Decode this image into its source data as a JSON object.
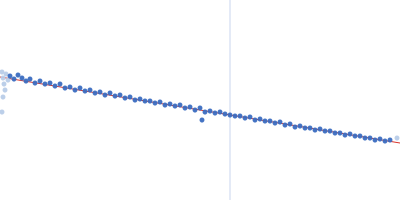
{
  "chart_data": {
    "type": "scatter",
    "xlim": [
      0,
      400
    ],
    "ylim": [
      0,
      200
    ],
    "tick_labels": false,
    "grid": false,
    "series": [
      {
        "type": "line",
        "color": "#c9d5ee",
        "line_style": "solid",
        "values": [
          [
            230,
            0
          ],
          [
            230,
            200
          ]
        ]
      },
      {
        "type": "scatter",
        "color": "#b8cce8",
        "marker": "circle",
        "values": [
          [
            2,
            128
          ],
          [
            3,
            122
          ],
          [
            4,
            116
          ],
          [
            5,
            110
          ],
          [
            3,
            103
          ],
          [
            2,
            88
          ],
          [
            6,
            126
          ],
          [
            8,
            120
          ],
          [
            397,
            62
          ]
        ]
      },
      {
        "type": "scatter",
        "color": "#3a6bc0",
        "marker": "circle",
        "values": [
          [
            10,
            124
          ],
          [
            14,
            121
          ],
          [
            18,
            125
          ],
          [
            22,
            122
          ],
          [
            26,
            119
          ],
          [
            30,
            121
          ],
          [
            35,
            117
          ],
          [
            40,
            119
          ],
          [
            45,
            116
          ],
          [
            50,
            117
          ],
          [
            55,
            114
          ],
          [
            60,
            116
          ],
          [
            65,
            112
          ],
          [
            70,
            113
          ],
          [
            75,
            110
          ],
          [
            80,
            112
          ],
          [
            85,
            109
          ],
          [
            90,
            110
          ],
          [
            95,
            107
          ],
          [
            100,
            108
          ],
          [
            105,
            105
          ],
          [
            110,
            107
          ],
          [
            115,
            104
          ],
          [
            120,
            105
          ],
          [
            125,
            102
          ],
          [
            130,
            103
          ],
          [
            135,
            100
          ],
          [
            140,
            101
          ],
          [
            145,
            99
          ],
          [
            150,
            99
          ],
          [
            155,
            97
          ],
          [
            160,
            98
          ],
          [
            165,
            95
          ],
          [
            170,
            96
          ],
          [
            175,
            94
          ],
          [
            180,
            95
          ],
          [
            185,
            92
          ],
          [
            190,
            93
          ],
          [
            195,
            90
          ],
          [
            200,
            92
          ],
          [
            202,
            80
          ],
          [
            205,
            88
          ],
          [
            210,
            89
          ],
          [
            215,
            87
          ],
          [
            220,
            88
          ],
          [
            225,
            86
          ],
          [
            230,
            85
          ],
          [
            235,
            84
          ],
          [
            240,
            84
          ],
          [
            245,
            82
          ],
          [
            250,
            83
          ],
          [
            255,
            80
          ],
          [
            260,
            81
          ],
          [
            265,
            79
          ],
          [
            270,
            79
          ],
          [
            275,
            77
          ],
          [
            280,
            78
          ],
          [
            285,
            75
          ],
          [
            290,
            76
          ],
          [
            295,
            73
          ],
          [
            300,
            74
          ],
          [
            305,
            72
          ],
          [
            310,
            72
          ],
          [
            315,
            70
          ],
          [
            320,
            71
          ],
          [
            325,
            69
          ],
          [
            330,
            69
          ],
          [
            335,
            67
          ],
          [
            340,
            67
          ],
          [
            345,
            65
          ],
          [
            350,
            66
          ],
          [
            355,
            64
          ],
          [
            360,
            64
          ],
          [
            365,
            62
          ],
          [
            370,
            62
          ],
          [
            375,
            60
          ],
          [
            380,
            61
          ],
          [
            385,
            59
          ],
          [
            390,
            60
          ]
        ]
      },
      {
        "type": "line",
        "color": "#d9342b",
        "line_style": "solid",
        "values": [
          [
            0,
            123
          ],
          [
            400,
            57
          ]
        ]
      }
    ]
  }
}
